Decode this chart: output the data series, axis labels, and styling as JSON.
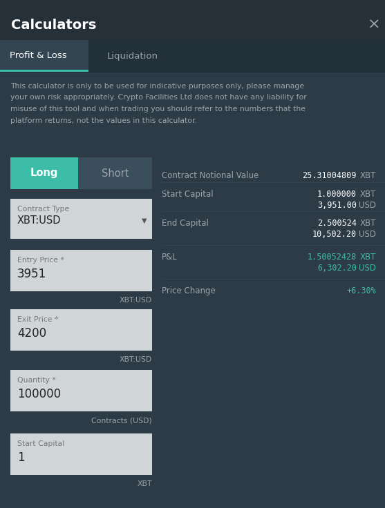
{
  "bg_color": "#2d3b47",
  "header_bg": "#263038",
  "tab_bar_bg": "#22303a",
  "active_tab_bg": "#344552",
  "input_bg": "#d0d5d8",
  "teal_color": "#3dbda8",
  "white": "#ffffff",
  "light_gray": "#9aa5ad",
  "dark_text": "#222222",
  "title": "Calculators",
  "close_x": "×",
  "tab1": "Profit & Loss",
  "tab2": "Liquidation",
  "long_label": "Long",
  "short_label": "Short",
  "contract_type_label": "Contract Type",
  "contract_type_value": "XBT:USD",
  "entry_price_label": "Entry Price *",
  "entry_price_value": "3951",
  "entry_price_unit": "XBT:USD",
  "exit_price_label": "Exit Price *",
  "exit_price_value": "4200",
  "exit_price_unit": "XBT:USD",
  "quantity_label": "Quantity *",
  "quantity_value": "100000",
  "quantity_unit": "Contracts (USD)",
  "start_capital_label": "Start Capital",
  "start_capital_value": "1",
  "start_capital_unit": "XBT",
  "cnv_label": "Contract Notional Value",
  "cnv_value": "25.31004809",
  "cnv_unit": "XBT",
  "sc_label": "Start Capital",
  "sc_val1": "1.000000",
  "sc_unit1": "XBT",
  "sc_val2": "3,951.00",
  "sc_unit2": "USD",
  "ec_label": "End Capital",
  "ec_val1": "2.500524",
  "ec_unit1": "XBT",
  "ec_val2": "10,502.20",
  "ec_unit2": "USD",
  "pnl_label": "P&L",
  "pnl_val1": "1.50052428",
  "pnl_unit1": "XBT",
  "pnl_val2": "6,302.20",
  "pnl_unit2": "USD",
  "pc_label": "Price Change",
  "pc_value": "+6.30%",
  "disclaimer_lines": [
    "This calculator is only to be used for indicative purposes only, please manage",
    "your own risk appropriately. Crypto Facilities Ltd does not have any liability for",
    "misuse of this tool and when trading you should refer to the numbers that the",
    "platform returns, not the values in this calculator."
  ]
}
